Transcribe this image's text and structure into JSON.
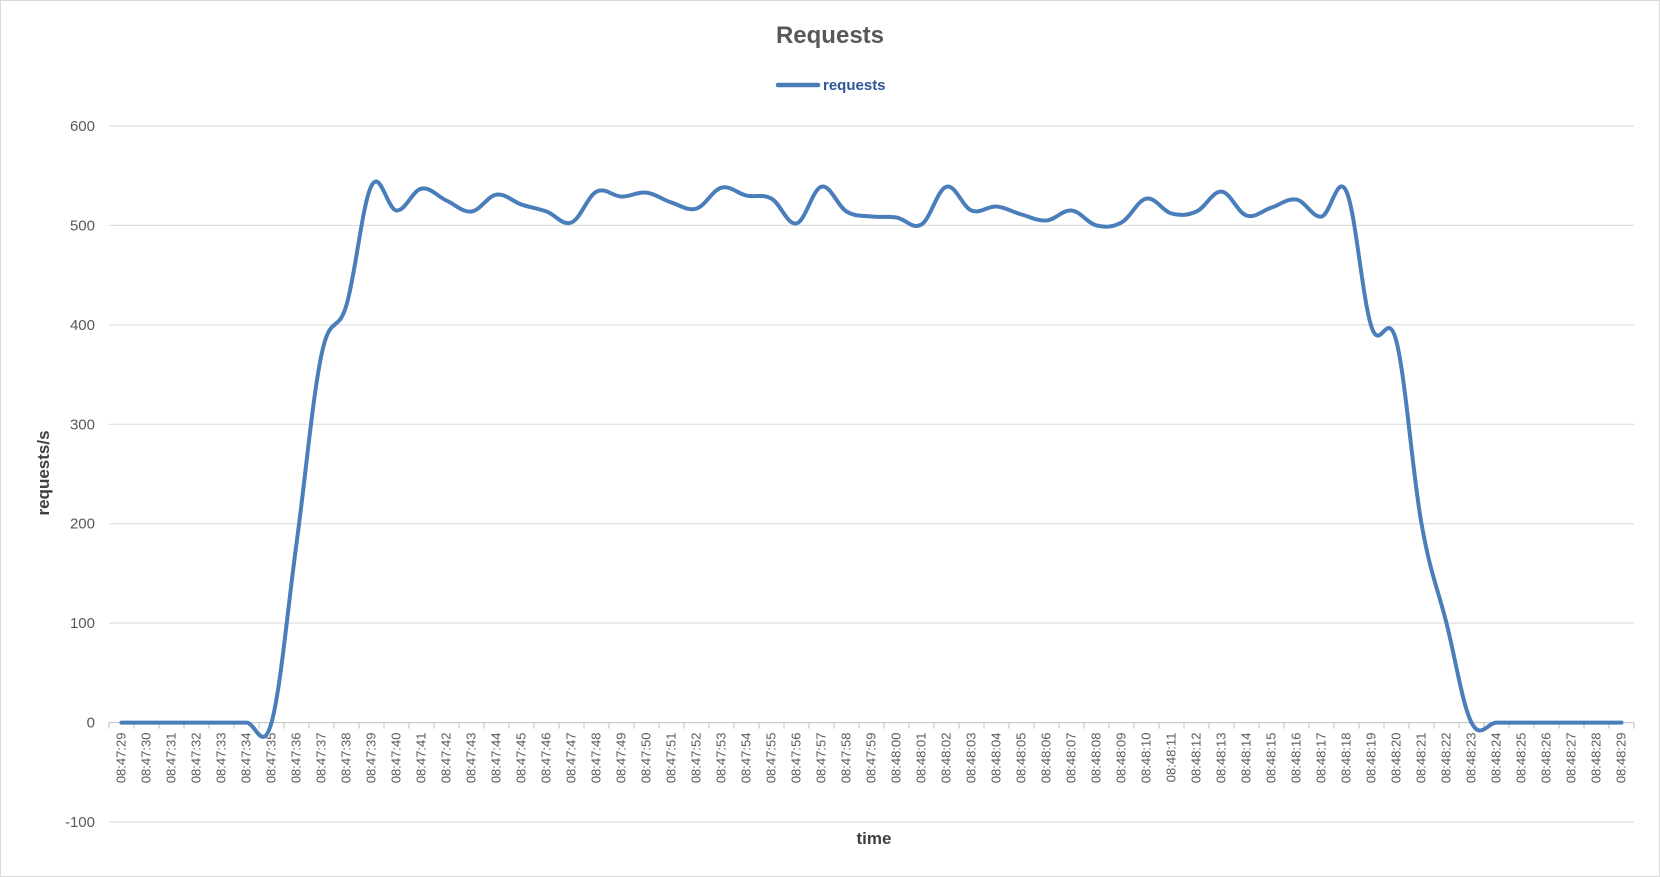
{
  "chart_data": {
    "type": "line",
    "title": "Requests",
    "xlabel": "time",
    "ylabel": "requests/s",
    "ylim": [
      -100,
      600
    ],
    "yticks": [
      -100,
      0,
      100,
      200,
      300,
      400,
      500,
      600
    ],
    "grid": true,
    "legend_position": "top",
    "line_color": "#4a7ebb",
    "x": [
      "08:47:29",
      "08:47:30",
      "08:47:31",
      "08:47:32",
      "08:47:33",
      "08:47:34",
      "08:47:35",
      "08:47:36",
      "08:47:37",
      "08:47:38",
      "08:47:39",
      "08:47:40",
      "08:47:41",
      "08:47:42",
      "08:47:43",
      "08:47:44",
      "08:47:45",
      "08:47:46",
      "08:47:47",
      "08:47:48",
      "08:47:49",
      "08:47:50",
      "08:47:51",
      "08:47:52",
      "08:47:53",
      "08:47:54",
      "08:47:55",
      "08:47:56",
      "08:47:57",
      "08:47:58",
      "08:47:59",
      "08:48:00",
      "08:48:01",
      "08:48:02",
      "08:48:03",
      "08:48:04",
      "08:48:05",
      "08:48:06",
      "08:48:07",
      "08:48:08",
      "08:48:09",
      "08:48:10",
      "08:48:11",
      "08:48:12",
      "08:48:13",
      "08:48:14",
      "08:48:15",
      "08:48:16",
      "08:48:17",
      "08:48:18",
      "08:48:19",
      "08:48:20",
      "08:48:21",
      "08:48:22",
      "08:48:23",
      "08:48:24",
      "08:48:25",
      "08:48:26",
      "08:48:27",
      "08:48:28",
      "08:48:29"
    ],
    "series": [
      {
        "name": "requests",
        "values": [
          0,
          0,
          0,
          0,
          0,
          0,
          0,
          180,
          370,
          420,
          540,
          515,
          537,
          525,
          514,
          531,
          521,
          514,
          503,
          534,
          529,
          533,
          523,
          517,
          538,
          530,
          527,
          502,
          539,
          514,
          509,
          508,
          501,
          539,
          515,
          519,
          511,
          505,
          515,
          500,
          503,
          527,
          512,
          514,
          534,
          510,
          518,
          526,
          509,
          534,
          398,
          383,
          200,
          100,
          0,
          0,
          0,
          0,
          0,
          0,
          0
        ]
      }
    ]
  }
}
